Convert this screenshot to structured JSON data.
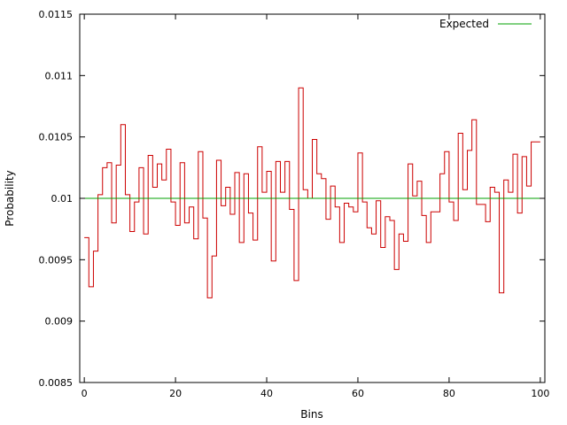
{
  "chart_data": {
    "type": "line",
    "title": "",
    "xlabel": "Bins",
    "ylabel": "Probability",
    "xlim": [
      -1,
      101
    ],
    "ylim": [
      0.0085,
      0.0115
    ],
    "x_ticks": [
      0,
      20,
      40,
      60,
      80,
      100
    ],
    "x_tick_labels": [
      "0",
      "20",
      "40",
      "60",
      "80",
      "100"
    ],
    "y_ticks": [
      0.0085,
      0.009,
      0.0095,
      0.01,
      0.0105,
      0.011,
      0.0115
    ],
    "y_tick_labels": [
      "0.0085",
      "0.009",
      "0.0095",
      "0.01",
      "0.0105",
      "0.011",
      "0.0115"
    ],
    "grid": false,
    "legend_position": "top-right",
    "colors": {
      "observed": "#cc0000",
      "expected": "#00a000"
    },
    "series": [
      {
        "style": "steps",
        "x": [
          0,
          1,
          2,
          3,
          4,
          5,
          6,
          7,
          8,
          9,
          10,
          11,
          12,
          13,
          14,
          15,
          16,
          17,
          18,
          19,
          20,
          21,
          22,
          23,
          24,
          25,
          26,
          27,
          28,
          29,
          30,
          31,
          32,
          33,
          34,
          35,
          36,
          37,
          38,
          39,
          40,
          41,
          42,
          43,
          44,
          45,
          46,
          47,
          48,
          49,
          50,
          51,
          52,
          53,
          54,
          55,
          56,
          57,
          58,
          59,
          60,
          61,
          62,
          63,
          64,
          65,
          66,
          67,
          68,
          69,
          70,
          71,
          72,
          73,
          74,
          75,
          76,
          77,
          78,
          79,
          80,
          81,
          82,
          83,
          84,
          85,
          86,
          87,
          88,
          89,
          90,
          91,
          92,
          93,
          94,
          95,
          96,
          97,
          98,
          99
        ],
        "values": [
          0.00968,
          0.00928,
          0.00957,
          0.01003,
          0.01025,
          0.01029,
          0.0098,
          0.01027,
          0.0106,
          0.01003,
          0.00973,
          0.00997,
          0.01025,
          0.00971,
          0.01035,
          0.01009,
          0.01028,
          0.01015,
          0.0104,
          0.00997,
          0.00978,
          0.01029,
          0.0098,
          0.00993,
          0.00967,
          0.01038,
          0.00984,
          0.00919,
          0.00953,
          0.01031,
          0.00994,
          0.01009,
          0.00987,
          0.01021,
          0.00964,
          0.0102,
          0.00988,
          0.00966,
          0.01042,
          0.01005,
          0.01022,
          0.00949,
          0.0103,
          0.01005,
          0.0103,
          0.00991,
          0.00933,
          0.0109,
          0.01007,
          0.01,
          0.01048,
          0.0102,
          0.01016,
          0.00983,
          0.0101,
          0.00993,
          0.00964,
          0.00996,
          0.00993,
          0.00989,
          0.01037,
          0.00997,
          0.00976,
          0.00971,
          0.00998,
          0.0096,
          0.00985,
          0.00982,
          0.00942,
          0.00971,
          0.00965,
          0.01028,
          0.01002,
          0.01014,
          0.00986,
          0.00964,
          0.00989,
          0.00989,
          0.0102,
          0.01038,
          0.00997,
          0.00982,
          0.01053,
          0.01007,
          0.01039,
          0.01064,
          0.00995,
          0.00995,
          0.00981,
          0.01009,
          0.01005,
          0.00923,
          0.01015,
          0.01005,
          0.01036,
          0.00988,
          0.01034,
          0.0101,
          0.01046,
          0.01046
        ]
      },
      {
        "name": "Expected",
        "style": "line",
        "x": [
          -1,
          101
        ],
        "values": [
          0.01,
          0.01
        ]
      }
    ]
  }
}
